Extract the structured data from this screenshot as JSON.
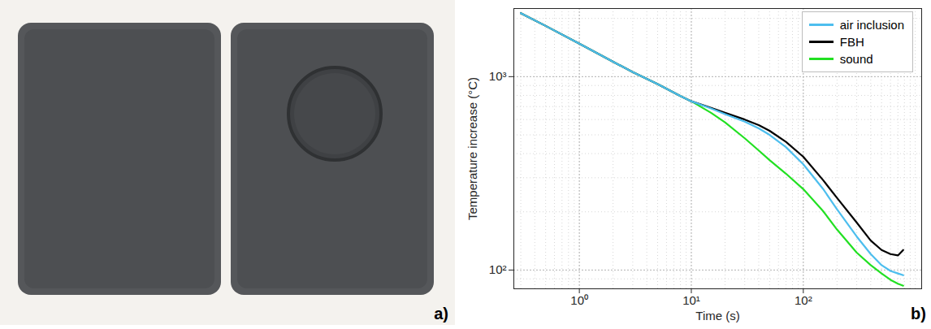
{
  "photo": {
    "label": "a)"
  },
  "chart_data": {
    "type": "line",
    "panel_label": "b)",
    "x_label": "Time (s)",
    "y_label": "Temperature increase (°C)",
    "log": true,
    "grid": true,
    "legend": "northeast",
    "xlim": [
      0.26,
      1140
    ],
    "ylim": [
      80,
      2250
    ],
    "xticks": [
      {
        "value": 1,
        "label": "10⁰"
      },
      {
        "value": 10,
        "label": "10¹"
      },
      {
        "value": 100,
        "label": "10²"
      }
    ],
    "yticks": [
      {
        "value": 100,
        "label": "10²"
      },
      {
        "value": 1000,
        "label": "10³"
      }
    ],
    "x": [
      0.3,
      0.5,
      1,
      2,
      3,
      5,
      8,
      10,
      15,
      20,
      30,
      40,
      50,
      70,
      100,
      150,
      200,
      300,
      400,
      500,
      600,
      700,
      780
    ],
    "series": [
      {
        "name": "air inclusion",
        "color": "#4dbeee",
        "values": [
          2130,
          1830,
          1480,
          1195,
          1055,
          915,
          793,
          746,
          685,
          640,
          585,
          540,
          500,
          432,
          352,
          263,
          206,
          149,
          121,
          106,
          99,
          96,
          94
        ]
      },
      {
        "name": "FBH",
        "color": "#000000",
        "values": [
          2130,
          1830,
          1480,
          1195,
          1055,
          915,
          793,
          746,
          690,
          650,
          600,
          562,
          525,
          460,
          385,
          292,
          236,
          176,
          142,
          127,
          121,
          119,
          127
        ]
      },
      {
        "name": "sound",
        "color": "#22e022",
        "values": [
          2130,
          1830,
          1480,
          1195,
          1055,
          915,
          793,
          746,
          650,
          580,
          480,
          415,
          370,
          315,
          262,
          202,
          162,
          123,
          106,
          96,
          89,
          85,
          83
        ]
      }
    ]
  }
}
